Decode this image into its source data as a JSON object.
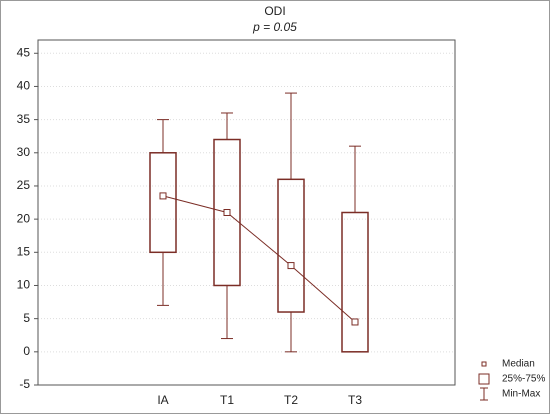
{
  "chart_data": {
    "type": "box",
    "title": "ODI",
    "subtitle": "p = 0.05",
    "categories": [
      "IA",
      "T1",
      "T2",
      "T3"
    ],
    "stats": {
      "min": [
        7,
        2,
        0,
        0
      ],
      "q1": [
        15,
        10,
        6,
        0
      ],
      "median": [
        23.5,
        21,
        13,
        4.5
      ],
      "q3": [
        30,
        32,
        26,
        21
      ],
      "max": [
        35,
        36,
        39,
        31
      ]
    },
    "legend": {
      "median": "Median",
      "box": "25%-75%",
      "whisker": "Min-Max"
    },
    "legend_position": "lower right",
    "color": "#7b2d26",
    "ylim": [
      -5,
      47
    ],
    "yticks": [
      -5,
      0,
      5,
      10,
      15,
      20,
      25,
      30,
      35,
      40,
      45
    ],
    "grid": true
  }
}
